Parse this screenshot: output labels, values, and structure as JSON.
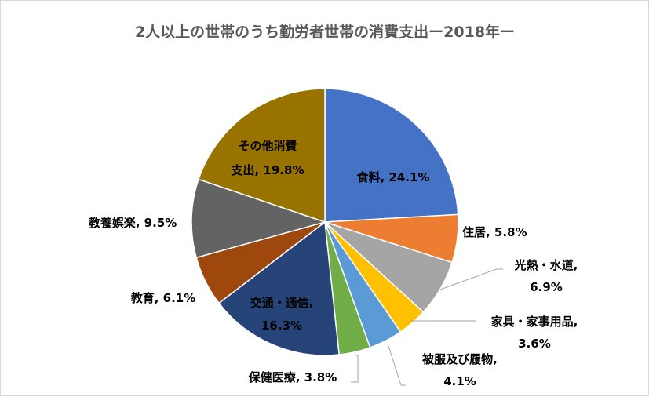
{
  "chart_data": {
    "type": "pie",
    "title": "2人以上の世帯のうち勤労者世帯の消費支出ー2018年ー",
    "start_angle": "12 o'clock, clockwise",
    "slices": [
      {
        "label": "食料",
        "value": 24.1,
        "text": "24.1%",
        "color": "#4472C4"
      },
      {
        "label": "住居",
        "value": 5.8,
        "text": "5.8%",
        "color": "#ED7D31"
      },
      {
        "label": "光熱・水道",
        "value": 6.9,
        "text": "6.9%",
        "color": "#A5A5A5"
      },
      {
        "label": "家具・家事用品",
        "value": 3.6,
        "text": "3.6%",
        "color": "#FFC000"
      },
      {
        "label": "被服及び履物",
        "value": 4.1,
        "text": "4.1%",
        "color": "#5B9BD5"
      },
      {
        "label": "保健医療",
        "value": 3.8,
        "text": "3.8%",
        "color": "#70AD47"
      },
      {
        "label": "交通・通信",
        "value": 16.3,
        "text": "16.3%",
        "color": "#264478"
      },
      {
        "label": "教育",
        "value": 6.1,
        "text": "6.1%",
        "color": "#9E480E"
      },
      {
        "label": "教養娯楽",
        "value": 9.5,
        "text": "9.5%",
        "color": "#636363"
      },
      {
        "label": "その他消費支出",
        "value": 19.8,
        "text": "19.8%",
        "color": "#997300"
      }
    ]
  },
  "labels": {
    "food": "食料, 24.1%",
    "housing": "住居, 5.8%",
    "utilities_1": "光熱・水道,",
    "utilities_2": "6.9%",
    "furniture_1": "家具・家事用品,",
    "furniture_2": "3.6%",
    "clothing_1": "被服及び履物,",
    "clothing_2": "4.1%",
    "medical": "保健医療, 3.8%",
    "transport_1": "交通・通信,",
    "transport_2": "16.3%",
    "education": "教育, 6.1%",
    "culture": "教養娯楽, 9.5%",
    "other_1": "その他消費",
    "other_2": "支出, 19.8%"
  }
}
